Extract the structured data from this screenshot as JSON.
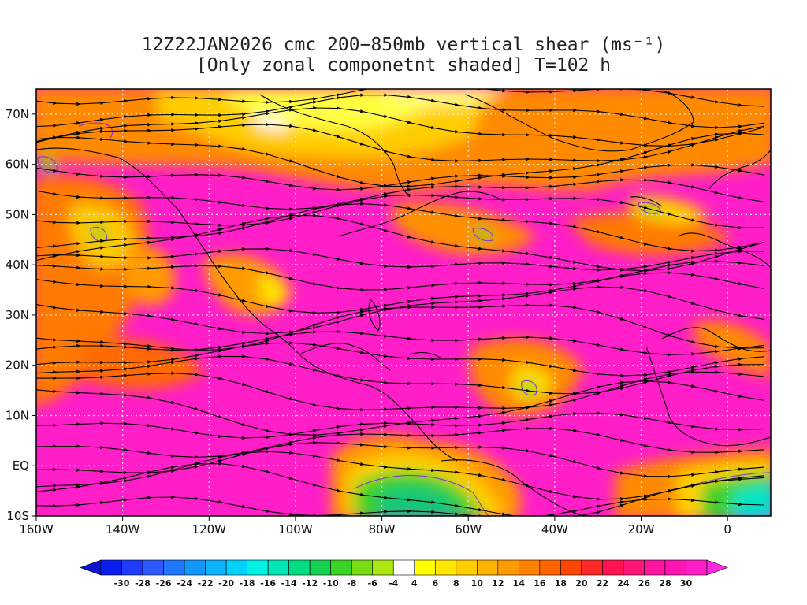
{
  "title": {
    "line1": "12Z22JAN2026 cmc 200−850mb vertical shear (ms⁻¹)",
    "line2": "[Only zonal componetnt shaded] T=102 h"
  },
  "map": {
    "lon_range": [
      -160,
      10
    ],
    "lat_range": [
      -10,
      75
    ],
    "lon_ticks": [
      {
        "value": -160,
        "label": "160W"
      },
      {
        "value": -140,
        "label": "140W"
      },
      {
        "value": -120,
        "label": "120W"
      },
      {
        "value": -100,
        "label": "100W"
      },
      {
        "value": -80,
        "label": "80W"
      },
      {
        "value": -60,
        "label": "60W"
      },
      {
        "value": -40,
        "label": "40W"
      },
      {
        "value": -20,
        "label": "20W"
      },
      {
        "value": 0,
        "label": "0"
      }
    ],
    "lat_ticks": [
      {
        "value": -10,
        "label": "10S"
      },
      {
        "value": 0,
        "label": "EQ"
      },
      {
        "value": 10,
        "label": "10N"
      },
      {
        "value": 20,
        "label": "20N"
      },
      {
        "value": 30,
        "label": "30N"
      },
      {
        "value": 40,
        "label": "40N"
      },
      {
        "value": 50,
        "label": "50N"
      },
      {
        "value": 60,
        "label": "60N"
      },
      {
        "value": 70,
        "label": "70N"
      }
    ],
    "grid": "dotted"
  },
  "colorbar": {
    "labels": [
      "-30",
      "-28",
      "-26",
      "-24",
      "-22",
      "-20",
      "-18",
      "-16",
      "-14",
      "-12",
      "-10",
      "-8",
      "-6",
      "-4",
      "4",
      "6",
      "8",
      "10",
      "12",
      "14",
      "16",
      "18",
      "20",
      "22",
      "24",
      "26",
      "28",
      "30"
    ],
    "colors": [
      "#0a1ef0",
      "#1e3cff",
      "#2d5aff",
      "#1e78ff",
      "#1496ff",
      "#0ab4ff",
      "#00d2ff",
      "#00f0e6",
      "#00e6b4",
      "#00dc82",
      "#14d250",
      "#3cd228",
      "#78dc14",
      "#aae614",
      "#ffffff",
      "#ffff00",
      "#ffe600",
      "#ffcd00",
      "#ffb400",
      "#ff9b00",
      "#ff8200",
      "#ff6400",
      "#ff4600",
      "#ff2828",
      "#ff1450",
      "#ff1478",
      "#ff14a0",
      "#ff14b4",
      "#ff1ec8"
    ],
    "end_low": "#0a14d2",
    "end_high": "#ff28dc"
  }
}
